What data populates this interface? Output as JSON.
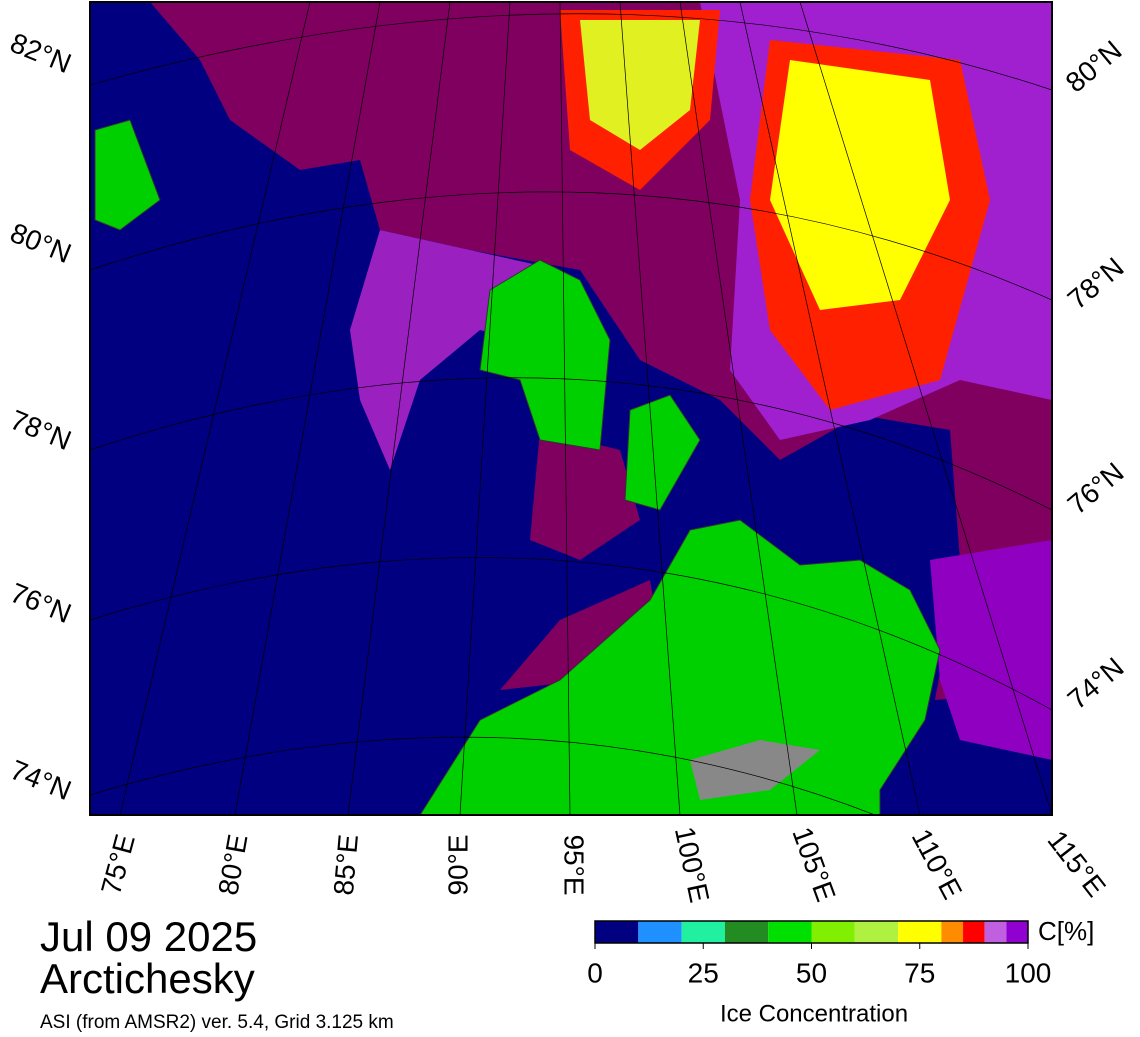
{
  "map": {
    "lat_labels_left": [
      "82°N",
      "80°N",
      "78°N",
      "76°N",
      "74°N"
    ],
    "lat_labels_right": [
      "80°N",
      "78°N",
      "76°N",
      "74°N"
    ],
    "lon_labels": [
      "75°E",
      "80°E",
      "85°E",
      "90°E",
      "95°E",
      "100°E",
      "105°E",
      "110°E",
      "115°E"
    ]
  },
  "caption": {
    "date": "Jul 09 2025",
    "region": "Arctichesky",
    "source": "ASI (from AMSR2) ver. 5.4,  Grid 3.125 km"
  },
  "colorbar": {
    "label": "Ice Concentration",
    "unit": "C[%]",
    "range": [
      0,
      100
    ],
    "ticks": [
      0,
      25,
      50,
      75,
      100
    ],
    "bins": [
      0,
      10,
      20,
      30,
      40,
      50,
      60,
      70,
      80,
      85,
      90,
      95,
      100
    ],
    "colors": [
      "#000080",
      "#1e90ff",
      "#20f0a0",
      "#228b22",
      "#00e000",
      "#80f000",
      "#b0f040",
      "#ffff00",
      "#ff8c00",
      "#ff0000",
      "#c060e0",
      "#9000d0"
    ]
  }
}
